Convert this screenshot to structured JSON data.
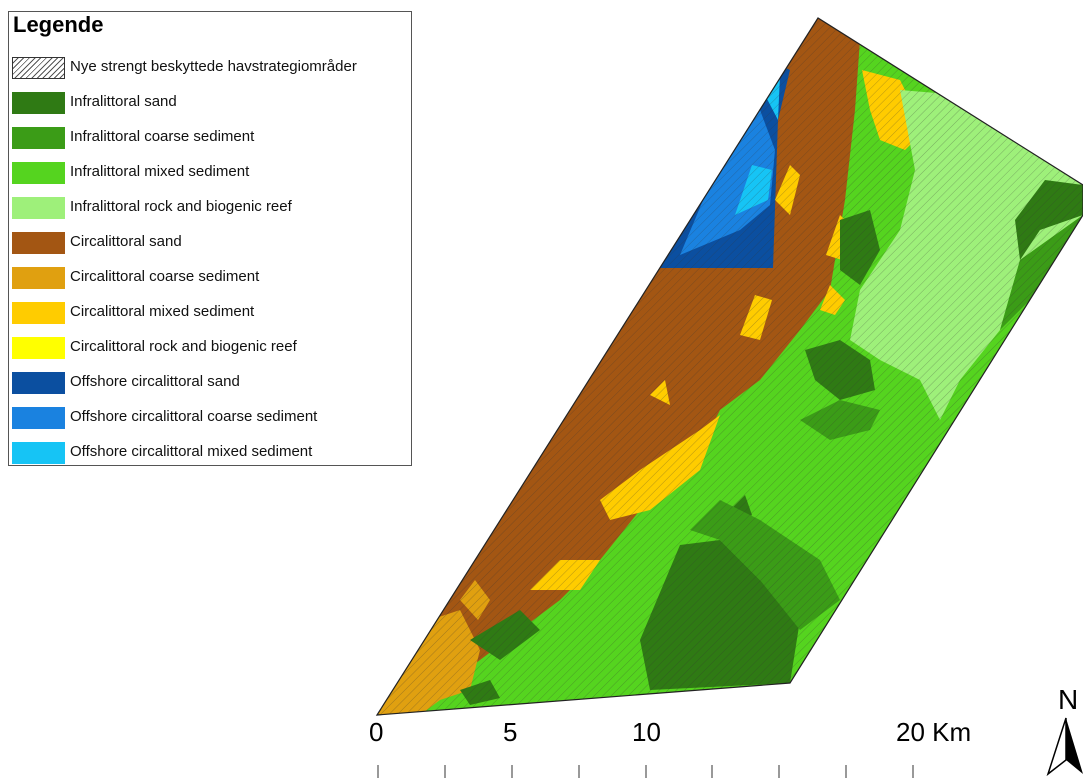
{
  "legend": {
    "title": "Legende",
    "items": [
      {
        "label": "Nye strengt beskyttede havstrategiområder",
        "color": "hatch",
        "icon": "hatch-swatch"
      },
      {
        "label": "Infralittoral sand",
        "color": "#2f7a14"
      },
      {
        "label": "Infralittoral coarse sediment",
        "color": "#3b9c17"
      },
      {
        "label": "Infralittoral mixed sediment",
        "color": "#55d41f"
      },
      {
        "label": "Infralittoral rock and biogenic reef",
        "color": "#9ef07a"
      },
      {
        "label": "Circalittoral sand",
        "color": "#a35613"
      },
      {
        "label": "Circalittoral coarse sediment",
        "color": "#e0a010"
      },
      {
        "label": "Circalittoral mixed sediment",
        "color": "#ffcc00"
      },
      {
        "label": "Circalittoral rock and biogenic reef",
        "color": "#ffff00"
      },
      {
        "label": "Offshore circalittoral sand",
        "color": "#0b4fa0"
      },
      {
        "label": "Offshore circalittoral coarse sediment",
        "color": "#1a82e0"
      },
      {
        "label": "Offshore circalittoral mixed sediment",
        "color": "#16c4f5"
      }
    ]
  },
  "scalebar": {
    "labels": [
      "0",
      "5",
      "10",
      "20 Km"
    ]
  },
  "north_arrow": {
    "letter": "N",
    "icon": "north-arrow-icon"
  }
}
